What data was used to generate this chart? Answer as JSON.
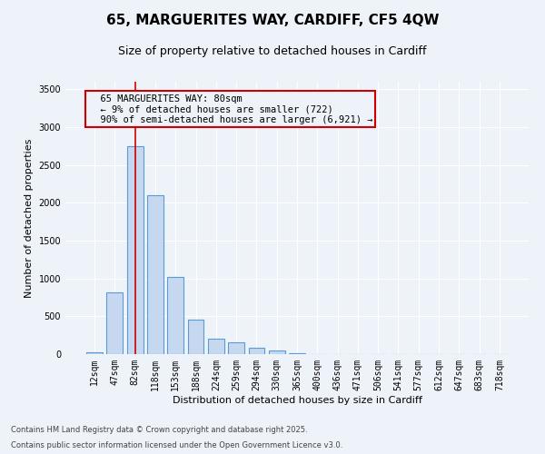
{
  "title_line1": "65, MARGUERITES WAY, CARDIFF, CF5 4QW",
  "title_line2": "Size of property relative to detached houses in Cardiff",
  "xlabel": "Distribution of detached houses by size in Cardiff",
  "ylabel": "Number of detached properties",
  "categories": [
    "12sqm",
    "47sqm",
    "82sqm",
    "118sqm",
    "153sqm",
    "188sqm",
    "224sqm",
    "259sqm",
    "294sqm",
    "330sqm",
    "365sqm",
    "400sqm",
    "436sqm",
    "471sqm",
    "506sqm",
    "541sqm",
    "577sqm",
    "612sqm",
    "647sqm",
    "683sqm",
    "718sqm"
  ],
  "values": [
    30,
    820,
    2750,
    2100,
    1020,
    460,
    200,
    160,
    90,
    45,
    10,
    5,
    3,
    2,
    1,
    1,
    0,
    0,
    0,
    0,
    0
  ],
  "bar_color": "#c5d8f0",
  "bar_edge_color": "#5b9bd5",
  "bar_edge_width": 0.8,
  "red_line_index": 2,
  "red_line_color": "#cc0000",
  "ylim": [
    0,
    3600
  ],
  "yticks": [
    0,
    500,
    1000,
    1500,
    2000,
    2500,
    3000,
    3500
  ],
  "annotation_text": "  65 MARGUERITES WAY: 80sqm\n  ← 9% of detached houses are smaller (722)\n  90% of semi-detached houses are larger (6,921) →",
  "annotation_box_edge_color": "#cc0000",
  "bg_color": "#eef2f9",
  "footer_line1": "Contains HM Land Registry data © Crown copyright and database right 2025.",
  "footer_line2": "Contains public sector information licensed under the Open Government Licence v3.0.",
  "grid_color": "#ffffff",
  "title_fontsize": 11,
  "subtitle_fontsize": 9,
  "tick_fontsize": 7,
  "ylabel_fontsize": 8,
  "xlabel_fontsize": 8,
  "annotation_fontsize": 7.5
}
